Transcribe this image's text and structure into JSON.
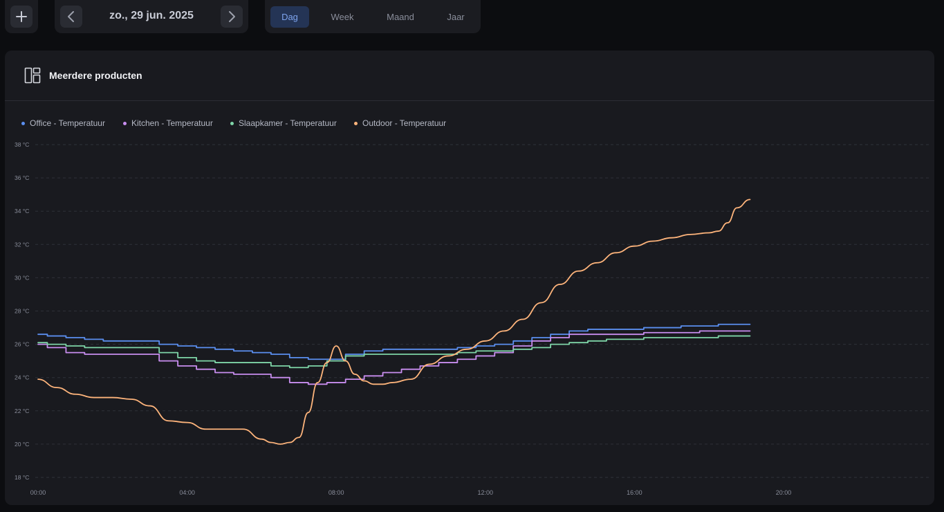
{
  "toolbar": {
    "add_icon": "plus-icon",
    "prev_icon": "chevron-left-icon",
    "next_icon": "chevron-right-icon",
    "date": "zo., 29 jun. 2025"
  },
  "period_tabs": [
    {
      "label": "Dag",
      "active": true
    },
    {
      "label": "Week",
      "active": false
    },
    {
      "label": "Maand",
      "active": false
    },
    {
      "label": "Jaar",
      "active": false
    }
  ],
  "card": {
    "icon": "layout-panels-icon",
    "title": "Meerdere producten"
  },
  "colors": {
    "accent": "#7ea4ee",
    "office": "#5b8ff0",
    "kitchen": "#c98ef0",
    "slaapkamer": "#7fd6a8",
    "outdoor": "#ffb57c"
  },
  "chart_data": {
    "type": "line",
    "ylabel_unit": "°C",
    "ylim": [
      18,
      38
    ],
    "yticks": [
      "38 °C",
      "36 °C",
      "34 °C",
      "32 °C",
      "30 °C",
      "28 °C",
      "26 °C",
      "24 °C",
      "22 °C",
      "20 °C",
      "18 °C"
    ],
    "xlim": [
      0,
      24
    ],
    "xticks": [
      "00:00",
      "04:00",
      "08:00",
      "12:00",
      "16:00",
      "20:00"
    ],
    "grid": true,
    "legend_position": "top-left",
    "series": [
      {
        "name": "Office - Temperatuur",
        "color": "#5b8ff0",
        "x": [
          0,
          0.5,
          1,
          1.5,
          2,
          2.5,
          3,
          3.5,
          4,
          4.5,
          5,
          5.5,
          6,
          6.5,
          7,
          7.5,
          8,
          8.5,
          9,
          9.5,
          10,
          10.5,
          11,
          11.5,
          12,
          12.5,
          13,
          13.5,
          14,
          14.5,
          15,
          15.5,
          16,
          16.5,
          17,
          17.5,
          18,
          18.5,
          19.1
        ],
        "y": [
          26.6,
          26.5,
          26.4,
          26.3,
          26.2,
          26.2,
          26.2,
          26.0,
          25.9,
          25.8,
          25.7,
          25.6,
          25.5,
          25.4,
          25.2,
          25.1,
          25.1,
          25.4,
          25.6,
          25.7,
          25.7,
          25.7,
          25.7,
          25.8,
          25.9,
          26.0,
          26.2,
          26.4,
          26.6,
          26.8,
          26.9,
          26.9,
          26.9,
          27.0,
          27.0,
          27.1,
          27.1,
          27.2,
          27.2
        ]
      },
      {
        "name": "Kitchen - Temperatuur",
        "color": "#c98ef0",
        "x": [
          0,
          0.5,
          1,
          1.5,
          2,
          2.5,
          3,
          3.5,
          4,
          4.5,
          5,
          5.5,
          6,
          6.5,
          7,
          7.5,
          8,
          8.5,
          9,
          9.5,
          10,
          10.5,
          11,
          11.5,
          12,
          12.5,
          13,
          13.5,
          14,
          14.5,
          15,
          15.5,
          16,
          16.5,
          17,
          17.5,
          18,
          18.5,
          19.1
        ],
        "y": [
          26.0,
          25.8,
          25.5,
          25.4,
          25.4,
          25.4,
          25.4,
          25.0,
          24.7,
          24.5,
          24.3,
          24.2,
          24.2,
          24.0,
          23.7,
          23.6,
          23.7,
          23.9,
          24.1,
          24.3,
          24.5,
          24.7,
          24.9,
          25.1,
          25.3,
          25.5,
          25.9,
          26.2,
          26.4,
          26.6,
          26.6,
          26.6,
          26.6,
          26.7,
          26.7,
          26.7,
          26.8,
          26.8,
          26.8
        ]
      },
      {
        "name": "Slaapkamer - Temperatuur",
        "color": "#7fd6a8",
        "x": [
          0,
          0.5,
          1,
          1.5,
          2,
          2.5,
          3,
          3.5,
          4,
          4.5,
          5,
          5.5,
          6,
          6.5,
          7,
          7.5,
          8,
          8.5,
          9,
          9.5,
          10,
          10.5,
          11,
          11.5,
          12,
          12.5,
          13,
          13.5,
          14,
          14.5,
          15,
          15.5,
          16,
          16.5,
          17,
          17.5,
          18,
          18.5,
          19.1
        ],
        "y": [
          26.1,
          26.0,
          25.9,
          25.8,
          25.8,
          25.8,
          25.8,
          25.5,
          25.2,
          25.0,
          24.9,
          24.9,
          24.9,
          24.7,
          24.6,
          24.7,
          25.0,
          25.3,
          25.4,
          25.4,
          25.4,
          25.4,
          25.4,
          25.5,
          25.6,
          25.6,
          25.7,
          25.8,
          26.0,
          26.1,
          26.2,
          26.3,
          26.3,
          26.4,
          26.4,
          26.4,
          26.4,
          26.5,
          26.5
        ]
      },
      {
        "name": "Outdoor - Temperatuur",
        "color": "#ffb57c",
        "x": [
          0,
          0.5,
          1,
          1.5,
          2,
          2.5,
          3,
          3.5,
          4,
          4.5,
          5,
          5.5,
          6,
          6.25,
          6.5,
          6.75,
          7,
          7.25,
          7.5,
          7.75,
          8,
          8.25,
          8.5,
          8.75,
          9,
          9.25,
          9.5,
          10,
          10.5,
          11,
          11.5,
          12,
          12.5,
          13,
          13.5,
          14,
          14.5,
          15,
          15.5,
          16,
          16.5,
          17,
          17.5,
          18,
          18.25,
          18.5,
          18.75,
          19.1
        ],
        "y": [
          23.9,
          23.4,
          23.0,
          22.8,
          22.8,
          22.7,
          22.3,
          21.4,
          21.3,
          20.9,
          20.9,
          20.9,
          20.3,
          20.1,
          20.0,
          20.1,
          20.4,
          21.9,
          23.7,
          24.9,
          25.9,
          25.0,
          24.2,
          23.8,
          23.6,
          23.6,
          23.7,
          23.9,
          24.8,
          25.3,
          25.7,
          26.2,
          26.8,
          27.5,
          28.5,
          29.6,
          30.4,
          30.9,
          31.5,
          31.9,
          32.2,
          32.4,
          32.6,
          32.7,
          32.8,
          33.3,
          34.2,
          34.7
        ]
      }
    ]
  }
}
